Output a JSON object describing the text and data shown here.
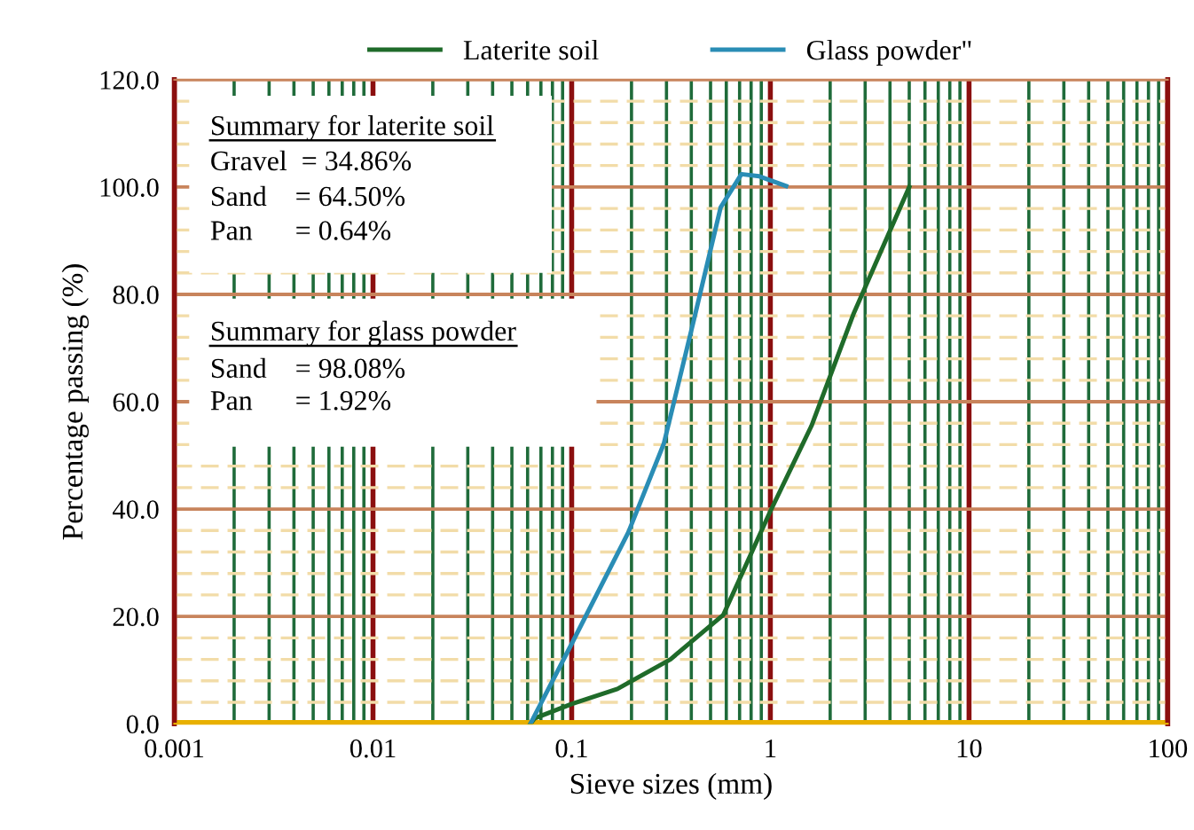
{
  "chart_data": {
    "type": "line",
    "xlabel": "Sieve sizes (mm)",
    "ylabel": "Percentage passing (%)",
    "series": [
      {
        "name": "Laterite soil",
        "color": "#1f6b2a",
        "x": [
          0.062,
          0.065,
          0.1,
          0.17,
          0.314,
          0.58,
          1.0,
          1.61,
          2.63,
          3.6,
          5.0
        ],
        "values": [
          0,
          1,
          3.7,
          6.5,
          12,
          20.3,
          39.6,
          55.5,
          76.5,
          88,
          100
        ]
      },
      {
        "name": "Glass powder\"",
        "color": "#2a8db5",
        "x": [
          0.062,
          0.064,
          0.1,
          0.193,
          0.291,
          0.413,
          0.562,
          0.715,
          0.88,
          1.2
        ],
        "values": [
          0,
          1,
          14.9,
          35.7,
          52.2,
          75.4,
          96.2,
          102.4,
          102,
          100.2
        ]
      }
    ],
    "log": "x",
    "xlim": [
      0.001,
      100
    ],
    "xticks": [
      0.001,
      {
        "value": 0.002,
        "label": null
      },
      {
        "value": 0.003,
        "label": null
      },
      {
        "value": 0.004,
        "label": null
      },
      {
        "value": 0.005,
        "label": null
      },
      {
        "value": 0.006,
        "label": null
      },
      {
        "value": 0.007,
        "label": null
      },
      {
        "value": 0.008,
        "label": null
      },
      {
        "value": 0.009,
        "label": null
      },
      0.01,
      {
        "value": 0.02,
        "label": null
      },
      {
        "value": 0.03,
        "label": null
      },
      {
        "value": 0.04,
        "label": null
      },
      {
        "value": 0.05,
        "label": null
      },
      {
        "value": 0.06,
        "label": null
      },
      {
        "value": 0.07,
        "label": null
      },
      {
        "value": 0.08,
        "label": null
      },
      {
        "value": 0.09,
        "label": null
      },
      0.1,
      {
        "value": 0.2,
        "label": null
      },
      {
        "value": 0.3,
        "label": null
      },
      {
        "value": 0.4,
        "label": null
      },
      {
        "value": 0.5,
        "label": null
      },
      {
        "value": 0.6,
        "label": null
      },
      {
        "value": 0.7,
        "label": null
      },
      {
        "value": 0.8,
        "label": null
      },
      {
        "value": 0.9,
        "label": null
      },
      1,
      {
        "value": 2,
        "label": null
      },
      {
        "value": 3,
        "label": null
      },
      {
        "value": 4,
        "label": null
      },
      {
        "value": 5,
        "label": null
      },
      {
        "value": 6,
        "label": null
      },
      {
        "value": 7,
        "label": null
      },
      {
        "value": 8,
        "label": null
      },
      {
        "value": 9,
        "label": null
      },
      10,
      {
        "value": 20,
        "label": null
      },
      {
        "value": 30,
        "label": null
      },
      {
        "value": 40,
        "label": null
      },
      {
        "value": 50,
        "label": null
      },
      {
        "value": 60,
        "label": null
      },
      {
        "value": 70,
        "label": null
      },
      {
        "value": 80,
        "label": null
      },
      {
        "value": 90,
        "label": null
      },
      100
    ],
    "ylim": [
      0,
      120
    ],
    "yticks": [
      {
        "value": 0,
        "label": "0.0"
      },
      {
        "value": 4,
        "label": null
      },
      {
        "value": 8,
        "label": null
      },
      {
        "value": 12,
        "label": null
      },
      {
        "value": 16,
        "label": null
      },
      {
        "value": 20,
        "label": "20.0"
      },
      {
        "value": 24,
        "label": null
      },
      {
        "value": 28,
        "label": null
      },
      {
        "value": 32,
        "label": null
      },
      {
        "value": 36,
        "label": null
      },
      {
        "value": 40,
        "label": "40.0"
      },
      {
        "value": 44,
        "label": null
      },
      {
        "value": 48,
        "label": null
      },
      {
        "value": 52,
        "label": null
      },
      {
        "value": 56,
        "label": null
      },
      {
        "value": 60,
        "label": "60.0"
      },
      {
        "value": 64,
        "label": null
      },
      {
        "value": 68,
        "label": null
      },
      {
        "value": 72,
        "label": null
      },
      {
        "value": 76,
        "label": null
      },
      {
        "value": 80,
        "label": "80.0"
      },
      {
        "value": 84,
        "label": null
      },
      {
        "value": 88,
        "label": null
      },
      {
        "value": 92,
        "label": null
      },
      {
        "value": 96,
        "label": null
      },
      {
        "value": 100,
        "label": "100.0"
      },
      {
        "value": 104,
        "label": null
      },
      {
        "value": 108,
        "label": null
      },
      {
        "value": 112,
        "label": null
      },
      {
        "value": 116,
        "label": null
      },
      {
        "value": 120,
        "label": "120.0"
      }
    ],
    "grid": true,
    "legend": "top",
    "marker": "none",
    "line_style": "solid",
    "annotations": [
      "Summary for laterite soil",
      "Gravel  = 34.86%",
      "Sand    = 64.50%",
      "Pan      = 0.64%",
      "Summary for glass powder",
      "Sand    = 98.08%",
      "Pan      = 1.92%"
    ]
  }
}
